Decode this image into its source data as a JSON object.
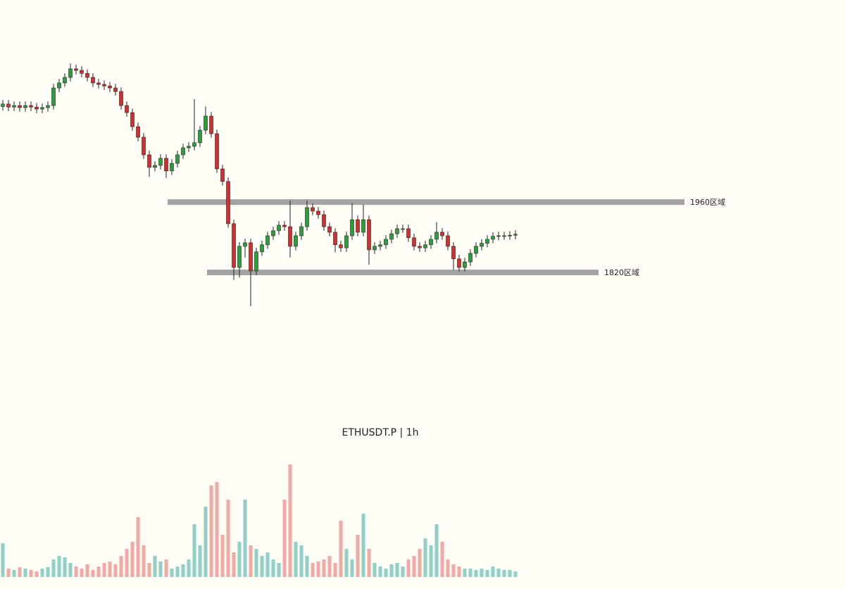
{
  "chart_data": {
    "type": "candlestick",
    "title": "ETHUSDT.P | 1h",
    "ylim": [
      1522,
      2362
    ],
    "vlim": [
      0,
      170
    ],
    "up_color": "#2e9e3a",
    "down_color": "#d32f2f",
    "volume_up_color": "#8fd1c6",
    "volume_down_color": "#f2a9a6",
    "levels": [
      {
        "value": 1960,
        "label": "1960区域"
      },
      {
        "value": 1820,
        "label": "1820区域"
      }
    ],
    "open": [
      2150,
      2155,
      2149,
      2152,
      2148,
      2152,
      2149,
      2145,
      2148,
      2152,
      2187,
      2197,
      2208,
      2225,
      2222,
      2216,
      2208,
      2197,
      2194,
      2191,
      2187,
      2180,
      2152,
      2138,
      2110,
      2089,
      2054,
      2029,
      2033,
      2047,
      2022,
      2037,
      2054,
      2068,
      2071,
      2078,
      2103,
      2131,
      2096,
      2026,
      2001,
      1917,
      1830,
      1872,
      1879,
      1823,
      1861,
      1875,
      1893,
      1903,
      1914,
      1911,
      1872,
      1893,
      1911,
      1949,
      1942,
      1935,
      1911,
      1900,
      1875,
      1869,
      1893,
      1925,
      1900,
      1925,
      1865,
      1872,
      1875,
      1886,
      1897,
      1907,
      1907,
      1889,
      1872,
      1869,
      1875,
      1886,
      1900,
      1893,
      1872,
      1847,
      1830,
      1841,
      1858,
      1872,
      1878,
      1886,
      1892,
      1893,
      1893,
      1894
    ],
    "high": [
      2163,
      2163,
      2160,
      2160,
      2160,
      2160,
      2157,
      2156,
      2160,
      2195,
      2205,
      2216,
      2236,
      2233,
      2230,
      2224,
      2216,
      2205,
      2202,
      2199,
      2195,
      2188,
      2160,
      2146,
      2118,
      2097,
      2062,
      2041,
      2055,
      2055,
      2045,
      2062,
      2076,
      2079,
      2165,
      2111,
      2150,
      2139,
      2104,
      2034,
      2009,
      1925,
      1880,
      1887,
      1887,
      1869,
      1883,
      1901,
      1911,
      1922,
      1922,
      1963,
      1901,
      1919,
      1963,
      1957,
      1950,
      1943,
      1919,
      1908,
      1883,
      1901,
      1958,
      1933,
      1955,
      1933,
      1880,
      1883,
      1894,
      1905,
      1915,
      1915,
      1915,
      1897,
      1880,
      1883,
      1894,
      1920,
      1908,
      1901,
      1880,
      1855,
      1849,
      1866,
      1880,
      1886,
      1894,
      1900,
      1901,
      1901,
      1902,
      1904
    ],
    "low": [
      2142,
      2141,
      2141,
      2140,
      2140,
      2141,
      2137,
      2137,
      2140,
      2144,
      2179,
      2189,
      2200,
      2214,
      2208,
      2200,
      2189,
      2186,
      2183,
      2179,
      2172,
      2144,
      2130,
      2102,
      2081,
      2046,
      2010,
      2021,
      2025,
      2008,
      2014,
      2029,
      2046,
      2060,
      2063,
      2070,
      2095,
      2088,
      2018,
      1993,
      1909,
      1805,
      1810,
      1850,
      1753,
      1815,
      1853,
      1867,
      1885,
      1895,
      1903,
      1850,
      1864,
      1885,
      1903,
      1934,
      1927,
      1903,
      1892,
      1860,
      1861,
      1861,
      1885,
      1892,
      1892,
      1835,
      1857,
      1864,
      1867,
      1878,
      1889,
      1899,
      1881,
      1864,
      1861,
      1861,
      1867,
      1878,
      1885,
      1864,
      1825,
      1822,
      1822,
      1833,
      1850,
      1864,
      1870,
      1878,
      1884,
      1885,
      1885,
      1886
    ],
    "close": [
      2155,
      2149,
      2152,
      2148,
      2152,
      2149,
      2145,
      2148,
      2152,
      2187,
      2197,
      2208,
      2225,
      2222,
      2216,
      2208,
      2197,
      2194,
      2191,
      2187,
      2180,
      2152,
      2138,
      2110,
      2089,
      2054,
      2029,
      2033,
      2047,
      2022,
      2037,
      2054,
      2068,
      2071,
      2078,
      2103,
      2131,
      2096,
      2026,
      2001,
      1917,
      1830,
      1872,
      1879,
      1823,
      1861,
      1875,
      1893,
      1903,
      1914,
      1911,
      1872,
      1893,
      1911,
      1949,
      1942,
      1935,
      1911,
      1900,
      1875,
      1869,
      1893,
      1925,
      1900,
      1925,
      1865,
      1872,
      1875,
      1886,
      1897,
      1907,
      1907,
      1889,
      1872,
      1869,
      1875,
      1886,
      1900,
      1893,
      1872,
      1847,
      1830,
      1841,
      1858,
      1872,
      1878,
      1886,
      1892,
      1893,
      1893,
      1894,
      1896
    ],
    "volume": [
      48,
      12,
      10,
      14,
      12,
      10,
      8,
      12,
      14,
      25,
      30,
      28,
      20,
      15,
      12,
      18,
      10,
      15,
      20,
      22,
      18,
      30,
      40,
      50,
      85,
      45,
      20,
      30,
      22,
      25,
      12,
      15,
      18,
      25,
      75,
      45,
      100,
      130,
      135,
      60,
      110,
      35,
      50,
      110,
      45,
      40,
      30,
      35,
      25,
      20,
      110,
      160,
      50,
      45,
      30,
      20,
      22,
      25,
      30,
      20,
      80,
      40,
      25,
      60,
      90,
      40,
      20,
      15,
      12,
      18,
      20,
      15,
      25,
      30,
      40,
      55,
      45,
      75,
      50,
      25,
      18,
      15,
      12,
      12,
      10,
      12,
      10,
      15,
      12,
      10,
      10,
      8
    ]
  }
}
